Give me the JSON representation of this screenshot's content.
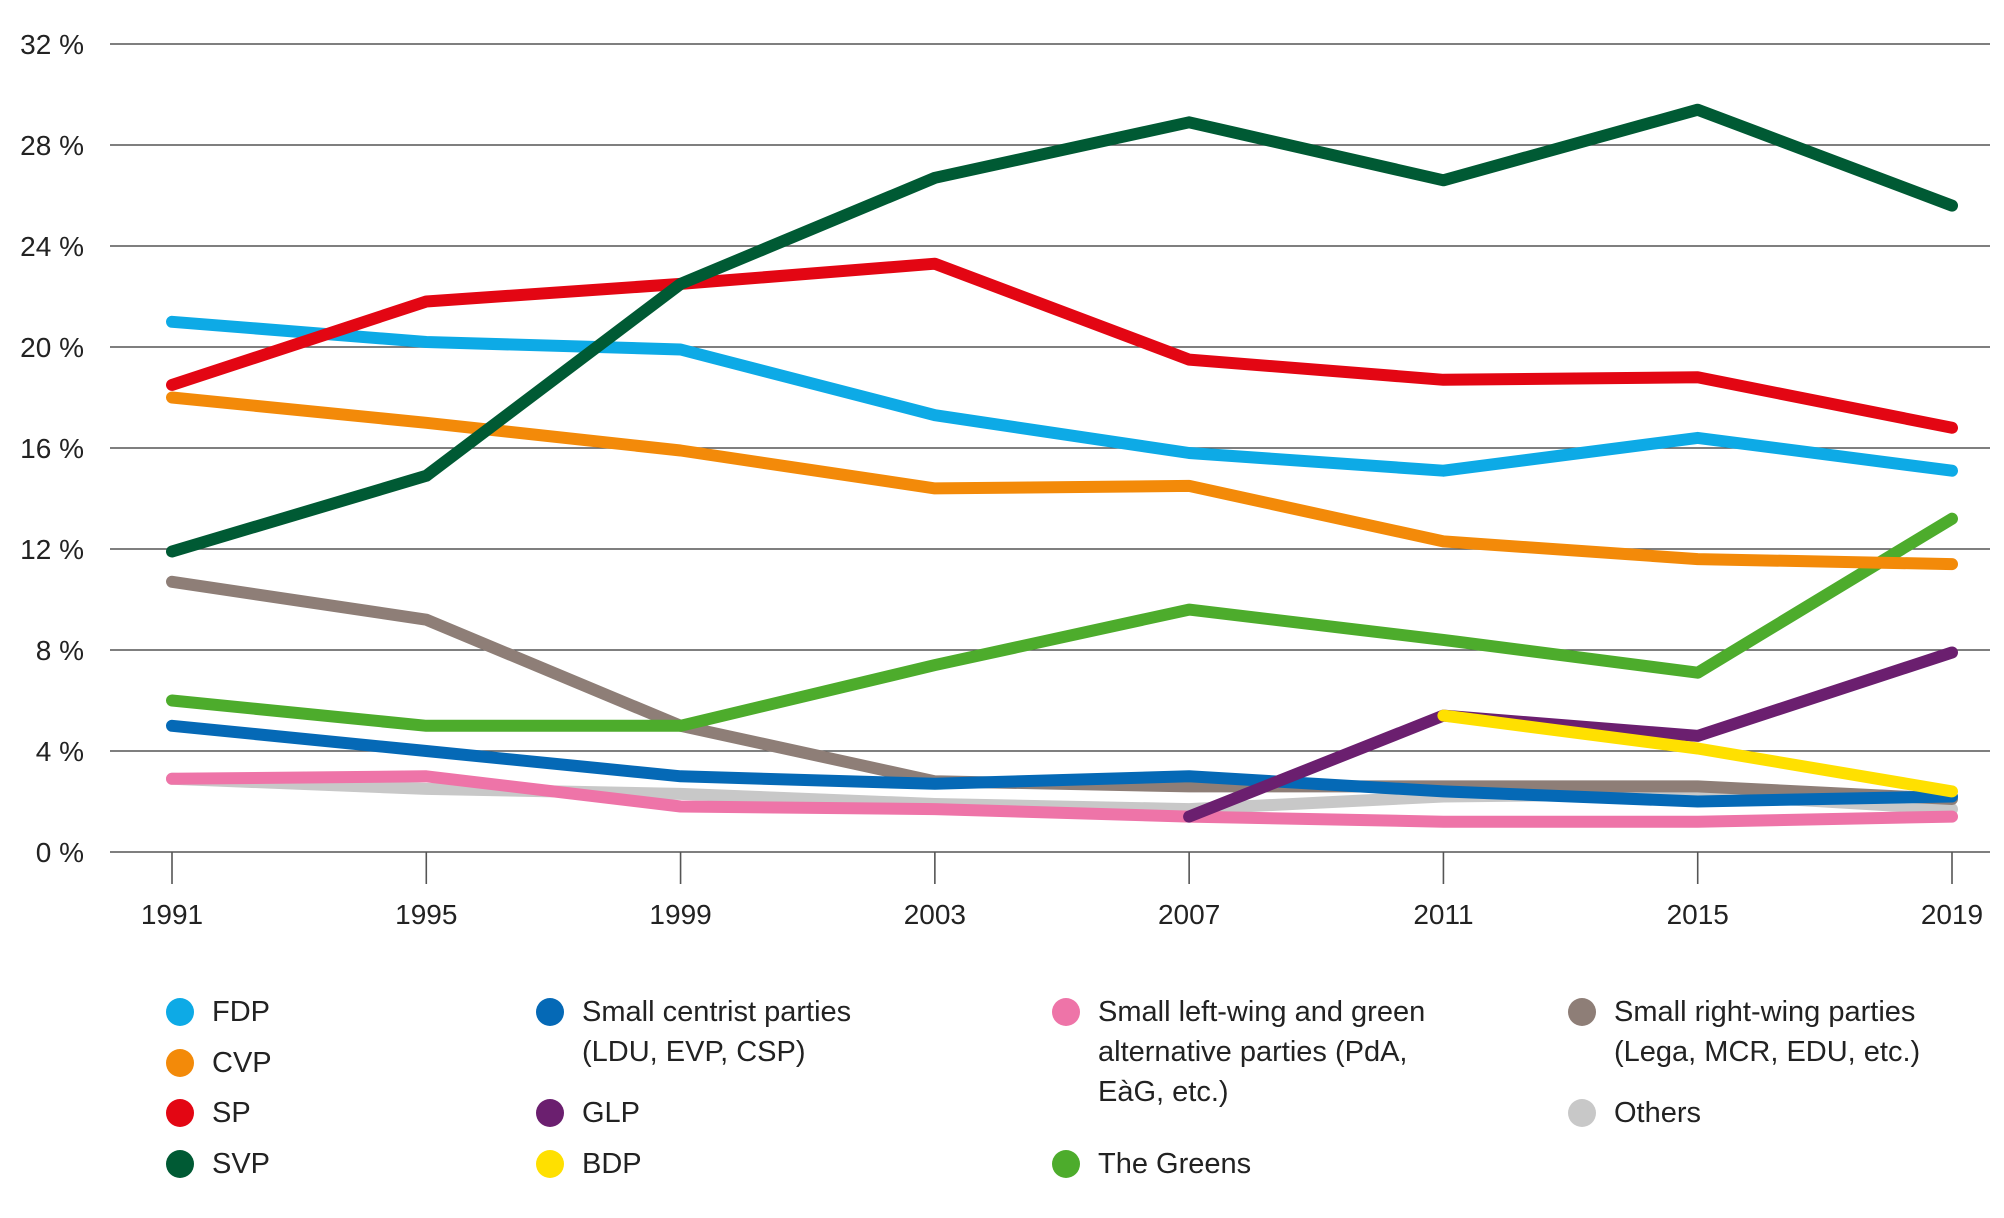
{
  "chart_data": {
    "type": "line",
    "title": "",
    "xlabel": "",
    "ylabel": "",
    "x": [
      1991,
      1995,
      1999,
      2003,
      2007,
      2011,
      2015,
      2019
    ],
    "x_tick_labels": [
      "1991",
      "1995",
      "1999",
      "2003",
      "2007",
      "2011",
      "2015",
      "2019"
    ],
    "ylim": [
      0,
      32
    ],
    "y_ticks": [
      0,
      4,
      8,
      12,
      16,
      20,
      24,
      28,
      32
    ],
    "y_tick_labels": [
      "0 %",
      "4 %",
      "8 %",
      "12 %",
      "16 %",
      "20 %",
      "24 %",
      "28 %",
      "32 %"
    ],
    "grid": "horizontal",
    "legend_position": "bottom",
    "series": [
      {
        "name": "Others",
        "color": "#c8c8c8",
        "x": [
          1991,
          1995,
          1999,
          2003,
          2007,
          2011,
          2015,
          2019
        ],
        "values": [
          2.9,
          2.5,
          2.3,
          1.9,
          1.7,
          2.2,
          2.3,
          1.7
        ]
      },
      {
        "name": "Small left-wing and green alternative parties (PdA, EàG, etc.)",
        "color": "#ee74a8",
        "x": [
          1991,
          1995,
          1999,
          2003,
          2007,
          2011,
          2015,
          2019
        ],
        "values": [
          2.9,
          3.0,
          1.8,
          1.7,
          1.4,
          1.2,
          1.2,
          1.4
        ]
      },
      {
        "name": "Small right-wing parties (Lega, MCR, EDU, etc.)",
        "color": "#8e7e77",
        "x": [
          1991,
          1995,
          1999,
          2003,
          2007,
          2011,
          2015,
          2019
        ],
        "values": [
          10.7,
          9.2,
          5.0,
          2.8,
          2.6,
          2.6,
          2.6,
          2.1
        ]
      },
      {
        "name": "Small centrist parties (LDU, EVP, CSP)",
        "color": "#0569b6",
        "x": [
          1991,
          1995,
          1999,
          2003,
          2007,
          2011,
          2015,
          2019
        ],
        "values": [
          5.0,
          4.0,
          3.0,
          2.7,
          3.0,
          2.4,
          2.0,
          2.2
        ]
      },
      {
        "name": "GLP",
        "color": "#6b1f6f",
        "x": [
          2007,
          2011,
          2015,
          2019
        ],
        "values": [
          1.4,
          5.4,
          4.6,
          7.9
        ]
      },
      {
        "name": "BDP",
        "color": "#ffe000",
        "x": [
          2011,
          2015,
          2019
        ],
        "values": [
          5.4,
          4.1,
          2.4
        ]
      },
      {
        "name": "The Greens",
        "color": "#4dac2c",
        "x": [
          1991,
          1995,
          1999,
          2003,
          2007,
          2011,
          2015,
          2019
        ],
        "values": [
          6.0,
          5.0,
          5.0,
          7.4,
          9.6,
          8.4,
          7.1,
          13.2
        ]
      },
      {
        "name": "CVP",
        "color": "#f38a09",
        "x": [
          1991,
          1995,
          1999,
          2003,
          2007,
          2011,
          2015,
          2019
        ],
        "values": [
          18.0,
          17.0,
          15.9,
          14.4,
          14.5,
          12.3,
          11.6,
          11.4
        ]
      },
      {
        "name": "FDP",
        "color": "#0daae6",
        "x": [
          1991,
          1995,
          1999,
          2003,
          2007,
          2011,
          2015,
          2019
        ],
        "values": [
          21.0,
          20.2,
          19.9,
          17.3,
          15.8,
          15.1,
          16.4,
          15.1
        ]
      },
      {
        "name": "SP",
        "color": "#e30613",
        "x": [
          1991,
          1995,
          1999,
          2003,
          2007,
          2011,
          2015,
          2019
        ],
        "values": [
          18.5,
          21.8,
          22.5,
          23.3,
          19.5,
          18.7,
          18.8,
          16.8
        ]
      },
      {
        "name": "SVP",
        "color": "#005a34",
        "x": [
          1991,
          1995,
          1999,
          2003,
          2007,
          2011,
          2015,
          2019
        ],
        "values": [
          11.9,
          14.9,
          22.5,
          26.7,
          28.9,
          26.6,
          29.4,
          25.6
        ]
      }
    ],
    "legend": [
      {
        "label": "FDP",
        "color": "#0daae6"
      },
      {
        "label": "CVP",
        "color": "#f38a09"
      },
      {
        "label": "SP",
        "color": "#e30613"
      },
      {
        "label": "SVP",
        "color": "#005a34"
      },
      {
        "label": "Small centrist parties\n(LDU, EVP, CSP)",
        "color": "#0569b6"
      },
      {
        "label": "GLP",
        "color": "#6b1f6f"
      },
      {
        "label": "BDP",
        "color": "#ffe000"
      },
      {
        "label": "Small left-wing and green\nalternative parties (PdA,\nEàG, etc.)",
        "color": "#ee74a8"
      },
      {
        "label": "The Greens",
        "color": "#4dac2c"
      },
      {
        "label": "Small right-wing parties\n(Lega, MCR, EDU, etc.)",
        "color": "#8e7e77"
      },
      {
        "label": "Others",
        "color": "#c8c8c8"
      }
    ]
  }
}
